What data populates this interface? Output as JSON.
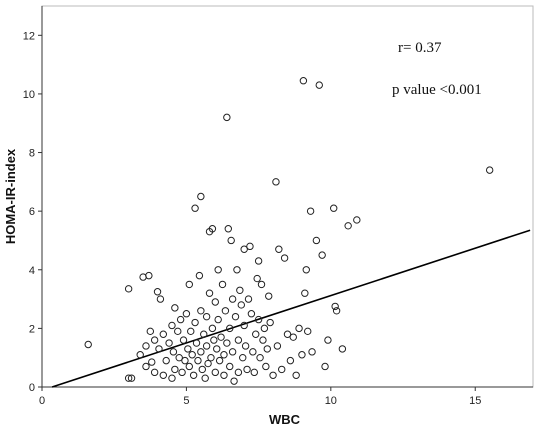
{
  "chart_data": {
    "type": "scatter",
    "xlabel": "WBC",
    "ylabel": "HOMA-IR-index",
    "xlim": [
      0,
      17
    ],
    "ylim": [
      0,
      13
    ],
    "x_ticks": [
      0,
      5,
      10,
      15
    ],
    "y_ticks": [
      0,
      2,
      4,
      6,
      8,
      10,
      12
    ],
    "grid": false,
    "legend": "none",
    "annotations": [
      {
        "text": "r= 0.37"
      },
      {
        "text": "p value <0.001"
      }
    ],
    "fit_line": {
      "x": [
        0.35,
        16.9
      ],
      "y": [
        0,
        5.35
      ]
    },
    "colors": {
      "points": "#222222",
      "fit_line": "#000000",
      "axes": "#333333",
      "background": "#ffffff"
    },
    "points": [
      [
        1.6,
        1.45
      ],
      [
        3.0,
        3.35
      ],
      [
        3.0,
        0.3
      ],
      [
        3.1,
        0.3
      ],
      [
        3.4,
        1.1
      ],
      [
        3.5,
        3.75
      ],
      [
        3.6,
        1.4
      ],
      [
        3.6,
        0.7
      ],
      [
        3.7,
        3.8
      ],
      [
        3.75,
        1.9
      ],
      [
        3.8,
        0.85
      ],
      [
        3.9,
        1.6
      ],
      [
        3.9,
        0.5
      ],
      [
        4.0,
        3.25
      ],
      [
        4.05,
        1.3
      ],
      [
        4.1,
        3.0
      ],
      [
        4.2,
        1.8
      ],
      [
        4.2,
        0.4
      ],
      [
        4.3,
        0.9
      ],
      [
        4.4,
        1.5
      ],
      [
        4.5,
        2.1
      ],
      [
        4.5,
        0.3
      ],
      [
        4.55,
        1.2
      ],
      [
        4.6,
        2.7
      ],
      [
        4.6,
        0.6
      ],
      [
        4.7,
        1.9
      ],
      [
        4.75,
        1.0
      ],
      [
        4.8,
        2.3
      ],
      [
        4.85,
        0.5
      ],
      [
        4.9,
        1.6
      ],
      [
        4.95,
        0.9
      ],
      [
        5.0,
        2.5
      ],
      [
        5.05,
        1.3
      ],
      [
        5.1,
        0.7
      ],
      [
        5.1,
        3.5
      ],
      [
        5.15,
        1.9
      ],
      [
        5.2,
        1.1
      ],
      [
        5.25,
        0.4
      ],
      [
        5.3,
        6.1
      ],
      [
        5.3,
        2.2
      ],
      [
        5.35,
        1.5
      ],
      [
        5.4,
        0.9
      ],
      [
        5.45,
        3.8
      ],
      [
        5.5,
        6.5
      ],
      [
        5.5,
        2.6
      ],
      [
        5.5,
        1.2
      ],
      [
        5.55,
        0.6
      ],
      [
        5.6,
        1.8
      ],
      [
        5.65,
        0.3
      ],
      [
        5.7,
        2.4
      ],
      [
        5.7,
        1.4
      ],
      [
        5.75,
        0.8
      ],
      [
        5.8,
        5.3
      ],
      [
        5.8,
        3.2
      ],
      [
        5.85,
        1.0
      ],
      [
        5.9,
        5.4
      ],
      [
        5.9,
        2.0
      ],
      [
        5.95,
        1.6
      ],
      [
        6.0,
        2.9
      ],
      [
        6.0,
        0.5
      ],
      [
        6.05,
        1.3
      ],
      [
        6.1,
        4.0
      ],
      [
        6.1,
        2.3
      ],
      [
        6.15,
        0.9
      ],
      [
        6.2,
        1.7
      ],
      [
        6.25,
        3.5
      ],
      [
        6.3,
        1.1
      ],
      [
        6.3,
        0.4
      ],
      [
        6.35,
        2.6
      ],
      [
        6.4,
        9.2
      ],
      [
        6.4,
        1.5
      ],
      [
        6.45,
        5.4
      ],
      [
        6.5,
        2.0
      ],
      [
        6.5,
        0.7
      ],
      [
        6.55,
        5.0
      ],
      [
        6.6,
        3.0
      ],
      [
        6.6,
        1.2
      ],
      [
        6.65,
        0.2
      ],
      [
        6.7,
        2.4
      ],
      [
        6.75,
        4.0
      ],
      [
        6.8,
        1.6
      ],
      [
        6.8,
        0.5
      ],
      [
        6.85,
        3.3
      ],
      [
        6.9,
        2.8
      ],
      [
        6.95,
        1.0
      ],
      [
        7.0,
        4.7
      ],
      [
        7.0,
        2.1
      ],
      [
        7.05,
        1.4
      ],
      [
        7.1,
        0.6
      ],
      [
        7.15,
        3.0
      ],
      [
        7.2,
        4.8
      ],
      [
        7.25,
        2.5
      ],
      [
        7.3,
        1.2
      ],
      [
        7.35,
        0.5
      ],
      [
        7.4,
        1.8
      ],
      [
        7.45,
        3.7
      ],
      [
        7.5,
        4.3
      ],
      [
        7.5,
        2.3
      ],
      [
        7.55,
        1.0
      ],
      [
        7.6,
        3.5
      ],
      [
        7.65,
        1.6
      ],
      [
        7.7,
        2.0
      ],
      [
        7.75,
        0.7
      ],
      [
        7.8,
        1.3
      ],
      [
        7.85,
        3.1
      ],
      [
        7.9,
        2.2
      ],
      [
        8.0,
        0.4
      ],
      [
        8.1,
        7.0
      ],
      [
        8.15,
        1.4
      ],
      [
        8.2,
        4.7
      ],
      [
        8.3,
        0.6
      ],
      [
        8.4,
        4.4
      ],
      [
        8.5,
        1.8
      ],
      [
        8.6,
        0.9
      ],
      [
        8.7,
        1.7
      ],
      [
        8.8,
        0.4
      ],
      [
        8.9,
        2.0
      ],
      [
        9.0,
        1.1
      ],
      [
        9.05,
        10.45
      ],
      [
        9.1,
        3.2
      ],
      [
        9.15,
        4.0
      ],
      [
        9.2,
        1.9
      ],
      [
        9.3,
        6.0
      ],
      [
        9.35,
        1.2
      ],
      [
        9.5,
        5.0
      ],
      [
        9.6,
        10.3
      ],
      [
        9.7,
        4.5
      ],
      [
        9.8,
        0.7
      ],
      [
        9.9,
        1.6
      ],
      [
        10.1,
        6.1
      ],
      [
        10.15,
        2.75
      ],
      [
        10.2,
        2.6
      ],
      [
        10.4,
        1.3
      ],
      [
        10.6,
        5.5
      ],
      [
        10.9,
        5.7
      ],
      [
        15.5,
        7.4
      ]
    ]
  }
}
